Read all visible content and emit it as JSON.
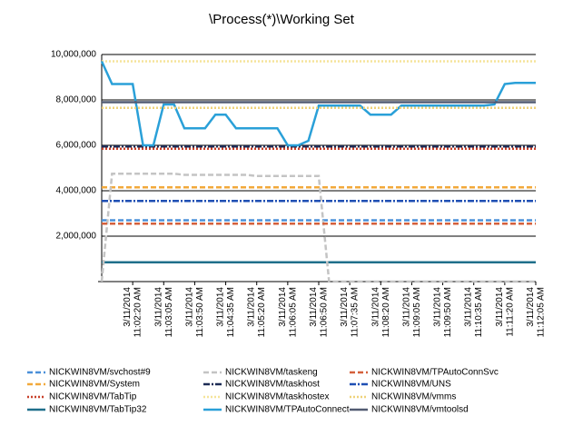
{
  "chart_data": {
    "type": "line",
    "title": "\\Process(*)\\Working Set",
    "categories": [
      null,
      null,
      null,
      "3/11/2014 11:02:20 AM",
      null,
      null,
      "3/11/2014 11:03:05 AM",
      null,
      null,
      "3/11/2014 11:03:50 AM",
      null,
      null,
      "3/11/2014 11:04:35 AM",
      null,
      null,
      "3/11/2014 11:05:20 AM",
      null,
      null,
      "3/11/2014 11:06:05 AM",
      null,
      null,
      "3/11/2014 11:06:50 AM",
      null,
      null,
      "3/11/2014 11:07:35 AM",
      null,
      null,
      "3/11/2014 11:08:20 AM",
      null,
      null,
      "3/11/2014 11:09:05 AM",
      null,
      null,
      "3/11/2014 11:09:50 AM",
      null,
      null,
      "3/11/2014 11:10:35 AM",
      null,
      null,
      "3/11/2014 11:11:20 AM",
      null,
      null,
      "3/11/2014 11:12:05 AM"
    ],
    "ylim": [
      0,
      10000000
    ],
    "yticks": [
      {
        "value": 2000000,
        "label": "2,000,000"
      },
      {
        "value": 4000000,
        "label": "4,000,000"
      },
      {
        "value": 6000000,
        "label": "6,000,000"
      },
      {
        "value": 8000000,
        "label": "8,000,000"
      },
      {
        "value": 10000000,
        "label": "10,000,000"
      }
    ],
    "grid": true,
    "legend": "bottom",
    "series": [
      {
        "name": "NICKWIN8VM/svchost#9",
        "color": "#4a90d9",
        "style": "dashed",
        "values": [
          2700000,
          2700000,
          2700000,
          2700000,
          2700000,
          2700000,
          2700000,
          2700000,
          2700000,
          2700000,
          2700000,
          2700000,
          2700000,
          2700000,
          2700000,
          2700000,
          2700000,
          2700000,
          2700000,
          2700000,
          2700000,
          2700000,
          2700000,
          2700000,
          2700000,
          2700000,
          2700000,
          2700000,
          2700000,
          2700000,
          2700000,
          2700000,
          2700000,
          2700000,
          2700000,
          2700000,
          2700000,
          2700000,
          2700000,
          2700000,
          2700000,
          2700000,
          2700000
        ]
      },
      {
        "name": "NICKWIN8VM/System",
        "color": "#f2a93b",
        "style": "dashed",
        "values": [
          4150000,
          4150000,
          4150000,
          4150000,
          4150000,
          4150000,
          4150000,
          4150000,
          4150000,
          4150000,
          4150000,
          4150000,
          4150000,
          4150000,
          4150000,
          4150000,
          4150000,
          4150000,
          4150000,
          4150000,
          4150000,
          4150000,
          4150000,
          4150000,
          4150000,
          4150000,
          4150000,
          4150000,
          4150000,
          4150000,
          4150000,
          4150000,
          4150000,
          4150000,
          4150000,
          4150000,
          4150000,
          4150000,
          4150000,
          4150000,
          4150000,
          4150000,
          4150000
        ]
      },
      {
        "name": "NICKWIN8VM/TabTip",
        "color": "#c8402a",
        "style": "dotted",
        "values": [
          5850000,
          5850000,
          5850000,
          5850000,
          5850000,
          5850000,
          5850000,
          5850000,
          5850000,
          5850000,
          5850000,
          5850000,
          5850000,
          5850000,
          5850000,
          5850000,
          5850000,
          5850000,
          5850000,
          5850000,
          5850000,
          5850000,
          5850000,
          5850000,
          5850000,
          5850000,
          5850000,
          5850000,
          5850000,
          5850000,
          5850000,
          5850000,
          5850000,
          5850000,
          5850000,
          5850000,
          5850000,
          5850000,
          5850000,
          5850000,
          5850000,
          5850000,
          5850000
        ]
      },
      {
        "name": "NICKWIN8VM/TabTip32",
        "color": "#1f6f8b",
        "style": "solid",
        "values": [
          850000,
          850000,
          850000,
          850000,
          850000,
          850000,
          850000,
          850000,
          850000,
          850000,
          850000,
          850000,
          850000,
          850000,
          850000,
          850000,
          850000,
          850000,
          850000,
          850000,
          850000,
          850000,
          850000,
          850000,
          850000,
          850000,
          850000,
          850000,
          850000,
          850000,
          850000,
          850000,
          850000,
          850000,
          850000,
          850000,
          850000,
          850000,
          850000,
          850000,
          850000,
          850000,
          850000
        ]
      },
      {
        "name": "NICKWIN8VM/taskeng",
        "color": "#c4c4c4",
        "style": "dashed",
        "values": [
          0,
          4750000,
          4750000,
          4750000,
          4750000,
          4750000,
          4750000,
          4750000,
          4700000,
          4700000,
          4700000,
          4700000,
          4700000,
          4700000,
          4700000,
          4650000,
          4650000,
          4650000,
          4650000,
          4650000,
          4650000,
          4650000,
          0,
          0,
          0,
          0,
          0,
          0,
          0,
          0,
          0,
          0,
          0,
          0,
          0,
          0,
          0,
          0,
          0,
          0,
          0,
          0,
          0
        ]
      },
      {
        "name": "NICKWIN8VM/taskhost",
        "color": "#1c2b55",
        "style": "dashdot",
        "values": [
          5950000,
          5950000,
          5950000,
          5950000,
          5950000,
          5950000,
          5950000,
          5950000,
          5950000,
          5950000,
          5950000,
          5950000,
          5950000,
          5950000,
          5950000,
          5950000,
          5950000,
          5950000,
          5950000,
          5950000,
          5950000,
          5950000,
          5950000,
          5950000,
          5950000,
          5950000,
          5950000,
          5950000,
          5950000,
          5950000,
          5950000,
          5950000,
          5950000,
          5950000,
          5950000,
          5950000,
          5950000,
          5950000,
          5950000,
          5950000,
          5950000,
          5950000,
          5950000
        ]
      },
      {
        "name": "NICKWIN8VM/taskhostex",
        "color": "#f5e49a",
        "style": "dotted",
        "values": [
          9700000,
          9700000,
          9700000,
          9700000,
          9700000,
          9700000,
          9700000,
          9700000,
          9700000,
          9700000,
          9700000,
          9700000,
          9700000,
          9700000,
          9700000,
          9700000,
          9700000,
          9700000,
          9700000,
          9700000,
          9700000,
          9700000,
          9700000,
          9700000,
          9700000,
          9700000,
          9700000,
          9700000,
          9700000,
          9700000,
          9700000,
          9700000,
          9700000,
          9700000,
          9700000,
          9700000,
          9700000,
          9700000,
          9700000,
          9700000,
          9700000,
          9700000,
          9700000
        ]
      },
      {
        "name": "NICKWIN8VM/TPAutoConnect",
        "color": "#2aa0d8",
        "style": "solid",
        "values": [
          9700000,
          8700000,
          8700000,
          8700000,
          6000000,
          6000000,
          7800000,
          7800000,
          6750000,
          6750000,
          6750000,
          7350000,
          7350000,
          6750000,
          6750000,
          6750000,
          6750000,
          6750000,
          6000000,
          6000000,
          6200000,
          7750000,
          7750000,
          7750000,
          7750000,
          7750000,
          7350000,
          7350000,
          7350000,
          7750000,
          7750000,
          7750000,
          7750000,
          7750000,
          7750000,
          7750000,
          7750000,
          7750000,
          7800000,
          8700000,
          8750000,
          8750000,
          8750000
        ]
      },
      {
        "name": "NICKWIN8VM/TPAutoConnSvc",
        "color": "#d4603c",
        "style": "dashed",
        "values": [
          2550000,
          2550000,
          2550000,
          2550000,
          2550000,
          2550000,
          2550000,
          2550000,
          2550000,
          2550000,
          2550000,
          2550000,
          2550000,
          2550000,
          2550000,
          2550000,
          2550000,
          2550000,
          2550000,
          2550000,
          2550000,
          2550000,
          2550000,
          2550000,
          2550000,
          2550000,
          2550000,
          2550000,
          2550000,
          2550000,
          2550000,
          2550000,
          2550000,
          2550000,
          2550000,
          2550000,
          2550000,
          2550000,
          2550000,
          2550000,
          2550000,
          2550000,
          2550000
        ]
      },
      {
        "name": "NICKWIN8VM/UNS",
        "color": "#1f4fb4",
        "style": "dashdot",
        "values": [
          3550000,
          3550000,
          3550000,
          3550000,
          3550000,
          3550000,
          3550000,
          3550000,
          3550000,
          3550000,
          3550000,
          3550000,
          3550000,
          3550000,
          3550000,
          3550000,
          3550000,
          3550000,
          3550000,
          3550000,
          3550000,
          3550000,
          3550000,
          3550000,
          3550000,
          3550000,
          3550000,
          3550000,
          3550000,
          3550000,
          3550000,
          3550000,
          3550000,
          3550000,
          3550000,
          3550000,
          3550000,
          3550000,
          3550000,
          3550000,
          3550000,
          3550000,
          3550000
        ]
      },
      {
        "name": "NICKWIN8VM/vmms",
        "color": "#efd27a",
        "style": "dotted",
        "values": [
          7650000,
          7650000,
          7650000,
          7650000,
          7650000,
          7650000,
          7650000,
          7650000,
          7650000,
          7650000,
          7650000,
          7650000,
          7650000,
          7650000,
          7650000,
          7650000,
          7650000,
          7650000,
          7650000,
          7650000,
          7650000,
          7650000,
          7650000,
          7650000,
          7650000,
          7650000,
          7650000,
          7650000,
          7650000,
          7650000,
          7650000,
          7650000,
          7650000,
          7650000,
          7650000,
          7650000,
          7650000,
          7650000,
          7650000,
          7650000,
          7650000,
          7650000,
          7650000
        ]
      },
      {
        "name": "NICKWIN8VM/vmtoolsd",
        "color": "#525b72",
        "style": "solid",
        "values": [
          7900000,
          7900000,
          7900000,
          7900000,
          7900000,
          7900000,
          7900000,
          7900000,
          7900000,
          7900000,
          7900000,
          7900000,
          7900000,
          7900000,
          7900000,
          7900000,
          7900000,
          7900000,
          7900000,
          7900000,
          7900000,
          7900000,
          7900000,
          7900000,
          7900000,
          7900000,
          7900000,
          7900000,
          7900000,
          7900000,
          7900000,
          7900000,
          7900000,
          7900000,
          7900000,
          7900000,
          7900000,
          7900000,
          7900000,
          7900000,
          7900000,
          7900000,
          7900000
        ]
      }
    ]
  }
}
